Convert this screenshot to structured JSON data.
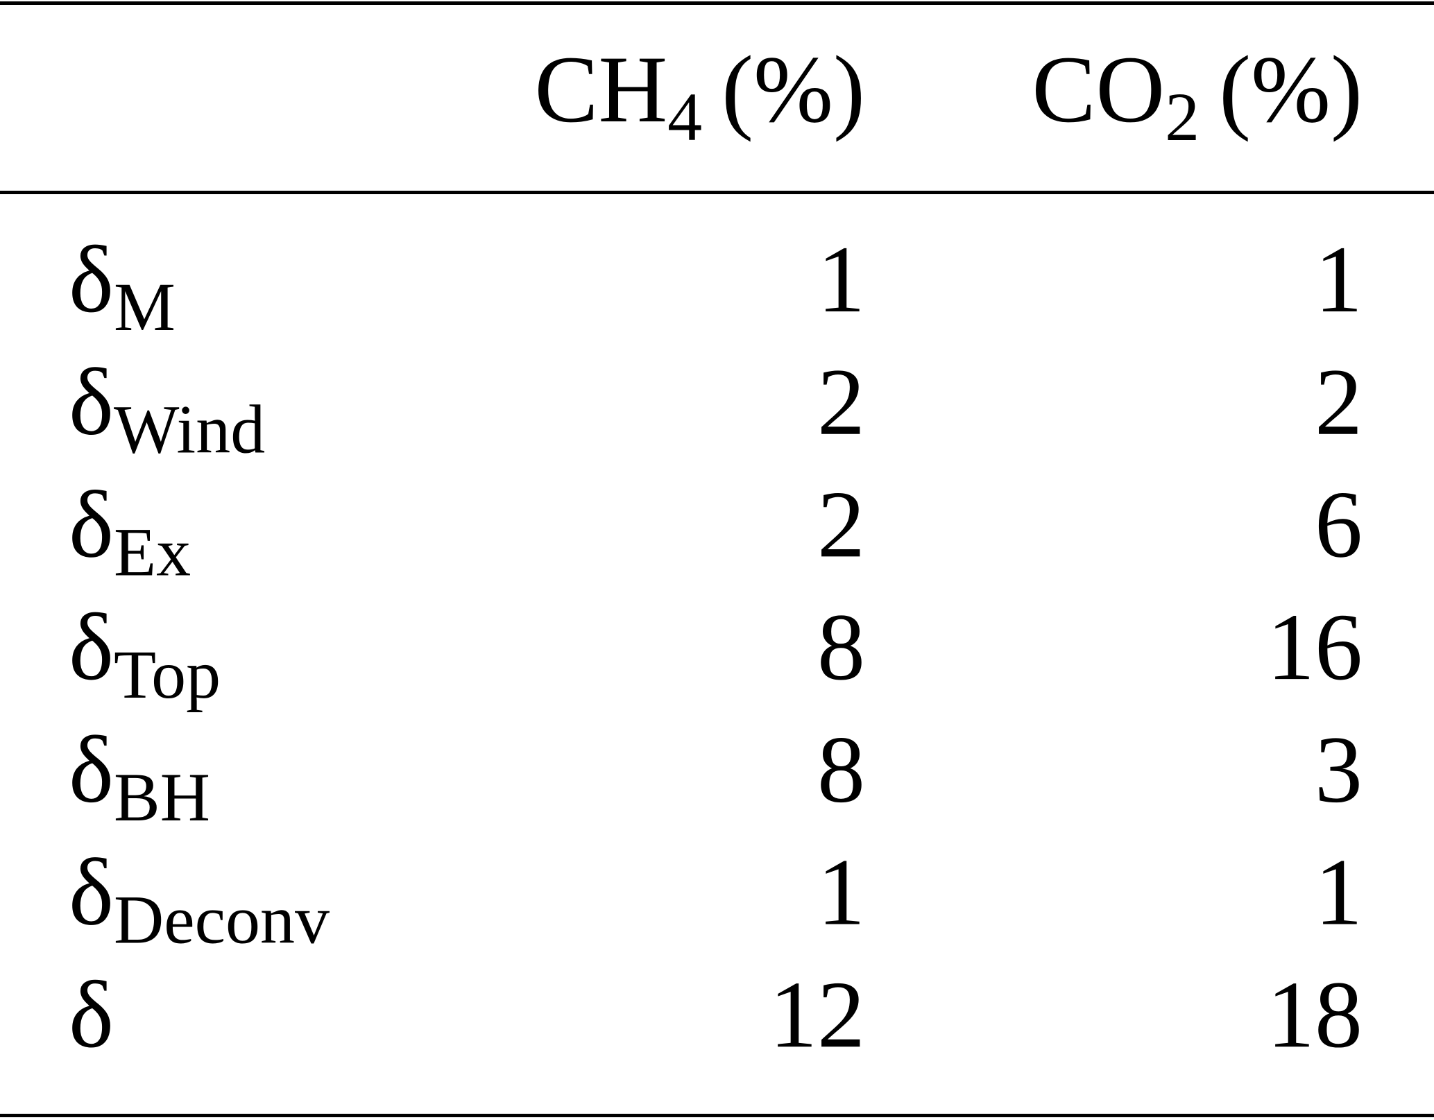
{
  "table": {
    "columns": [
      {
        "base": "CH",
        "sub": "4",
        "unit": "(%)"
      },
      {
        "base": "CO",
        "sub": "2",
        "unit": "(%)"
      }
    ],
    "rows": [
      {
        "symbol": "δ",
        "sub": "M",
        "values": [
          1,
          1
        ]
      },
      {
        "symbol": "δ",
        "sub": "Wind",
        "values": [
          2,
          2
        ]
      },
      {
        "symbol": "δ",
        "sub": "Ex",
        "values": [
          2,
          6
        ]
      },
      {
        "symbol": "δ",
        "sub": "Top",
        "values": [
          8,
          16
        ]
      },
      {
        "symbol": "δ",
        "sub": "BH",
        "values": [
          8,
          3
        ]
      },
      {
        "symbol": "δ",
        "sub": "Deconv",
        "values": [
          1,
          1
        ]
      },
      {
        "symbol": "δ",
        "values": [
          12,
          18
        ]
      }
    ]
  }
}
